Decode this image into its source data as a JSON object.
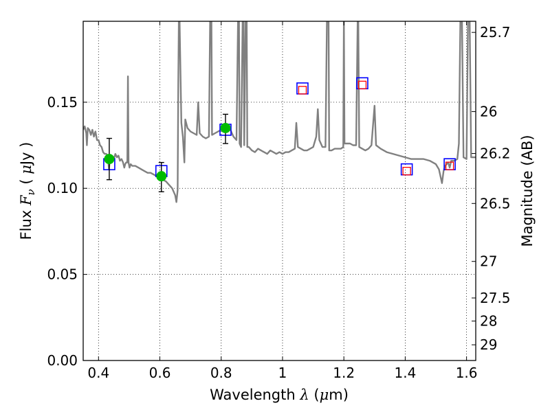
{
  "chart_data": {
    "type": "scatter",
    "title": "",
    "xlabel": {
      "prefix": "Wavelength",
      "symbol": "λ",
      "open": "(",
      "unit_sym": "μ",
      "unit_rest": "m)"
    },
    "ylabel": {
      "prefix": "Flux",
      "symbol": "F",
      "subscript": "ν",
      "open": "(",
      "unit_sym": "μ",
      "unit_rest": "Jy )"
    },
    "y2label": "Magnitude (AB)",
    "xlim": [
      0.35,
      1.63
    ],
    "ylim": [
      0.0,
      0.197
    ],
    "grid": true,
    "x_ticks": [
      {
        "value": 0.4,
        "label": "0.4"
      },
      {
        "value": 0.6,
        "label": "0.6"
      },
      {
        "value": 0.8,
        "label": "0.8"
      },
      {
        "value": 1.0,
        "label": "1"
      },
      {
        "value": 1.2,
        "label": "1.2"
      },
      {
        "value": 1.4,
        "label": "1.4"
      },
      {
        "value": 1.6,
        "label": "1.6"
      }
    ],
    "y_ticks": [
      {
        "value": 0.0,
        "label": "0.00"
      },
      {
        "value": 0.05,
        "label": "0.05"
      },
      {
        "value": 0.1,
        "label": "0.10"
      },
      {
        "value": 0.15,
        "label": "0.15"
      }
    ],
    "y2_ticks": [
      {
        "mag": 25.7,
        "label": "25.7"
      },
      {
        "mag": 26.0,
        "label": "26"
      },
      {
        "mag": 26.2,
        "label": "26.2"
      },
      {
        "mag": 26.5,
        "label": "26.5"
      },
      {
        "mag": 27.0,
        "label": "27"
      },
      {
        "mag": 27.5,
        "label": "27.5"
      },
      {
        "mag": 28.0,
        "label": "28"
      },
      {
        "mag": 29.0,
        "label": "29"
      }
    ],
    "series": [
      {
        "kind": "line",
        "color": "#808080",
        "points": [
          [
            0.35,
            0.134
          ],
          [
            0.355,
            0.136
          ],
          [
            0.36,
            0.132
          ],
          [
            0.362,
            0.125
          ],
          [
            0.365,
            0.135
          ],
          [
            0.37,
            0.134
          ],
          [
            0.375,
            0.131
          ],
          [
            0.38,
            0.134
          ],
          [
            0.385,
            0.13
          ],
          [
            0.39,
            0.133
          ],
          [
            0.395,
            0.128
          ],
          [
            0.4,
            0.128
          ],
          [
            0.405,
            0.125
          ],
          [
            0.41,
            0.124
          ],
          [
            0.415,
            0.121
          ],
          [
            0.42,
            0.12
          ],
          [
            0.425,
            0.12
          ],
          [
            0.43,
            0.119
          ],
          [
            0.434,
            0.111
          ],
          [
            0.438,
            0.119
          ],
          [
            0.445,
            0.118
          ],
          [
            0.45,
            0.117
          ],
          [
            0.455,
            0.12
          ],
          [
            0.46,
            0.118
          ],
          [
            0.465,
            0.119
          ],
          [
            0.47,
            0.116
          ],
          [
            0.475,
            0.117
          ],
          [
            0.48,
            0.115
          ],
          [
            0.484,
            0.112
          ],
          [
            0.487,
            0.114
          ],
          [
            0.49,
            0.115
          ],
          [
            0.494,
            0.115
          ],
          [
            0.496,
            0.165
          ],
          [
            0.498,
            0.115
          ],
          [
            0.501,
            0.112
          ],
          [
            0.505,
            0.114
          ],
          [
            0.51,
            0.113
          ],
          [
            0.52,
            0.113
          ],
          [
            0.53,
            0.112
          ],
          [
            0.54,
            0.111
          ],
          [
            0.55,
            0.11
          ],
          [
            0.56,
            0.109
          ],
          [
            0.57,
            0.109
          ],
          [
            0.58,
            0.108
          ],
          [
            0.59,
            0.107
          ],
          [
            0.6,
            0.106
          ],
          [
            0.61,
            0.105
          ],
          [
            0.62,
            0.104
          ],
          [
            0.63,
            0.102
          ],
          [
            0.64,
            0.1
          ],
          [
            0.65,
            0.096
          ],
          [
            0.654,
            0.092
          ],
          [
            0.658,
            0.099
          ],
          [
            0.66,
            0.16
          ],
          [
            0.662,
            0.2
          ],
          [
            0.664,
            0.2
          ],
          [
            0.667,
            0.17
          ],
          [
            0.67,
            0.138
          ],
          [
            0.675,
            0.13
          ],
          [
            0.68,
            0.115
          ],
          [
            0.683,
            0.14
          ],
          [
            0.69,
            0.135
          ],
          [
            0.7,
            0.133
          ],
          [
            0.71,
            0.132
          ],
          [
            0.72,
            0.131
          ],
          [
            0.725,
            0.15
          ],
          [
            0.73,
            0.132
          ],
          [
            0.74,
            0.13
          ],
          [
            0.75,
            0.129
          ],
          [
            0.76,
            0.13
          ],
          [
            0.764,
            0.2
          ],
          [
            0.768,
            0.2
          ],
          [
            0.77,
            0.131
          ],
          [
            0.78,
            0.132
          ],
          [
            0.79,
            0.133
          ],
          [
            0.8,
            0.134
          ],
          [
            0.815,
            0.136
          ],
          [
            0.83,
            0.134
          ],
          [
            0.84,
            0.13
          ],
          [
            0.85,
            0.128
          ],
          [
            0.855,
            0.2
          ],
          [
            0.858,
            0.2
          ],
          [
            0.86,
            0.126
          ],
          [
            0.865,
            0.124
          ],
          [
            0.87,
            0.2
          ],
          [
            0.873,
            0.2
          ],
          [
            0.875,
            0.125
          ],
          [
            0.88,
            0.2
          ],
          [
            0.883,
            0.2
          ],
          [
            0.885,
            0.124
          ],
          [
            0.89,
            0.124
          ],
          [
            0.9,
            0.122
          ],
          [
            0.91,
            0.121
          ],
          [
            0.92,
            0.123
          ],
          [
            0.93,
            0.122
          ],
          [
            0.94,
            0.121
          ],
          [
            0.95,
            0.12
          ],
          [
            0.96,
            0.122
          ],
          [
            0.97,
            0.121
          ],
          [
            0.98,
            0.12
          ],
          [
            0.99,
            0.121
          ],
          [
            1.0,
            0.12
          ],
          [
            1.01,
            0.121
          ],
          [
            1.02,
            0.121
          ],
          [
            1.03,
            0.122
          ],
          [
            1.04,
            0.123
          ],
          [
            1.045,
            0.138
          ],
          [
            1.05,
            0.124
          ],
          [
            1.06,
            0.123
          ],
          [
            1.07,
            0.122
          ],
          [
            1.08,
            0.122
          ],
          [
            1.09,
            0.123
          ],
          [
            1.1,
            0.124
          ],
          [
            1.11,
            0.13
          ],
          [
            1.115,
            0.146
          ],
          [
            1.12,
            0.128
          ],
          [
            1.13,
            0.124
          ],
          [
            1.14,
            0.124
          ],
          [
            1.145,
            0.2
          ],
          [
            1.15,
            0.2
          ],
          [
            1.152,
            0.122
          ],
          [
            1.16,
            0.122
          ],
          [
            1.17,
            0.123
          ],
          [
            1.18,
            0.123
          ],
          [
            1.19,
            0.123
          ],
          [
            1.198,
            0.124
          ],
          [
            1.2,
            0.2
          ],
          [
            1.202,
            0.126
          ],
          [
            1.21,
            0.126
          ],
          [
            1.22,
            0.126
          ],
          [
            1.23,
            0.125
          ],
          [
            1.24,
            0.125
          ],
          [
            1.245,
            0.2
          ],
          [
            1.247,
            0.2
          ],
          [
            1.25,
            0.124
          ],
          [
            1.26,
            0.123
          ],
          [
            1.27,
            0.122
          ],
          [
            1.28,
            0.123
          ],
          [
            1.29,
            0.125
          ],
          [
            1.3,
            0.148
          ],
          [
            1.305,
            0.125
          ],
          [
            1.32,
            0.123
          ],
          [
            1.34,
            0.121
          ],
          [
            1.36,
            0.12
          ],
          [
            1.38,
            0.119
          ],
          [
            1.4,
            0.118
          ],
          [
            1.42,
            0.117
          ],
          [
            1.44,
            0.117
          ],
          [
            1.46,
            0.117
          ],
          [
            1.48,
            0.116
          ],
          [
            1.5,
            0.114
          ],
          [
            1.51,
            0.111
          ],
          [
            1.515,
            0.107
          ],
          [
            1.52,
            0.103
          ],
          [
            1.525,
            0.11
          ],
          [
            1.53,
            0.113
          ],
          [
            1.54,
            0.115
          ],
          [
            1.545,
            0.112
          ],
          [
            1.55,
            0.116
          ],
          [
            1.56,
            0.116
          ],
          [
            1.57,
            0.117
          ],
          [
            1.575,
            0.126
          ],
          [
            1.58,
            0.2
          ],
          [
            1.585,
            0.2
          ],
          [
            1.59,
            0.118
          ],
          [
            1.6,
            0.117
          ],
          [
            1.605,
            0.2
          ],
          [
            1.61,
            0.2
          ],
          [
            1.615,
            0.118
          ],
          [
            1.63,
            0.118
          ]
        ]
      },
      {
        "kind": "open-square",
        "color": "#0000ff",
        "points": [
          [
            0.435,
            0.114
          ],
          [
            0.605,
            0.11
          ],
          [
            0.814,
            0.134
          ],
          [
            1.065,
            0.158
          ],
          [
            1.26,
            0.161
          ],
          [
            1.405,
            0.111
          ],
          [
            1.545,
            0.114
          ]
        ]
      },
      {
        "kind": "open-square-small",
        "color": "#ff0000",
        "points": [
          [
            1.065,
            0.157
          ],
          [
            1.26,
            0.16
          ],
          [
            1.405,
            0.11
          ],
          [
            1.545,
            0.113
          ]
        ]
      },
      {
        "kind": "filled-circle",
        "color": "#00bb00",
        "points": [
          [
            0.435,
            0.117
          ],
          [
            0.605,
            0.107
          ],
          [
            0.814,
            0.135
          ]
        ],
        "errors": [
          [
            0.105,
            0.129
          ],
          [
            0.098,
            0.115
          ],
          [
            0.126,
            0.143
          ]
        ]
      }
    ]
  }
}
